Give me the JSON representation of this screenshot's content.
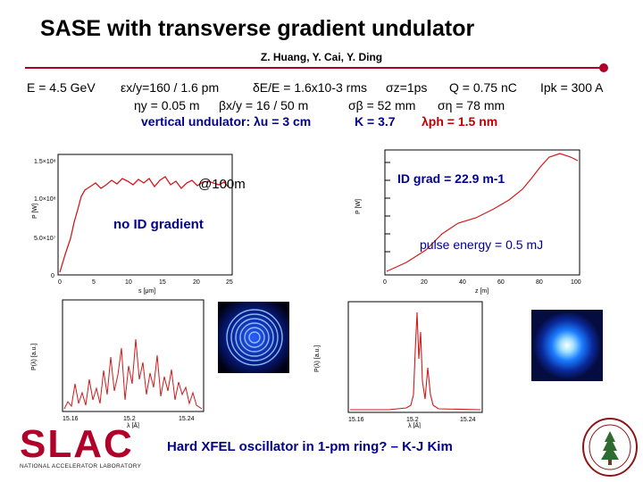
{
  "slide": {
    "title": "SASE with transverse gradient undulator",
    "authors": "Z. Huang, Y. Cai, Y. Ding"
  },
  "params": {
    "energy": "E = 4.5 GeV",
    "emittance": "εx/y=160 / 1.6 pm",
    "energy_spread": "δE/E = 1.6x10-3 rms",
    "sigma_z": "σz=1ps",
    "charge": "Q = 0.75 nC",
    "peak_current": "Ipk = 300 A",
    "eta_y": "ηy = 0.05 m",
    "beta_xy": "βx/y = 16 / 50 m",
    "sigma_beta": "σβ = 52 mm",
    "sigma_eta": "ση = 78 mm",
    "undulator": "vertical undulator: λu = 3 cm",
    "k_value": "K = 3.7",
    "lambda_ph": "λph = 1.5 nm"
  },
  "annotations": {
    "at100m": "@100m",
    "id_grad": "ID grad = 22.9 m-1",
    "no_id_gradient": "no ID gradient",
    "pulse_energy": "pulse energy = 0.5 mJ"
  },
  "footer": {
    "question": "Hard XFEL oscillator in 1-pm ring? – K-J Kim",
    "slac_logo_text": "SLAC",
    "slac_logo_subtext": "NATIONAL ACCELERATOR LABORATORY"
  },
  "plot_left_top": {
    "xlabel": "s [μm]",
    "ylabel": "P [W]",
    "xticks": [
      "0",
      "5",
      "10",
      "15",
      "20",
      "25"
    ],
    "yticks": [
      "1.5×10⁸",
      "1.0×10⁸",
      "5.0×10⁷",
      "0"
    ]
  },
  "plot_right_top": {
    "xlabel": "z [m]",
    "ylabel": "P [W]",
    "xticks": [
      "0",
      "20",
      "40",
      "60",
      "80",
      "100"
    ]
  },
  "plot_left_bottom": {
    "xlabel": "λ [Å]",
    "ylabel": "P(λ) [a.u.]",
    "xticks": [
      "15.16",
      "15.2",
      "15.24"
    ]
  },
  "plot_right_bottom": {
    "xlabel": "λ [Å]",
    "ylabel": "P(λ) [a.u.]",
    "xticks": [
      "15.16",
      "15.2",
      "15.24"
    ]
  },
  "colors": {
    "accent": "#b0002a",
    "param_blue": "#00008b",
    "curve_red": "#d11a1a"
  }
}
